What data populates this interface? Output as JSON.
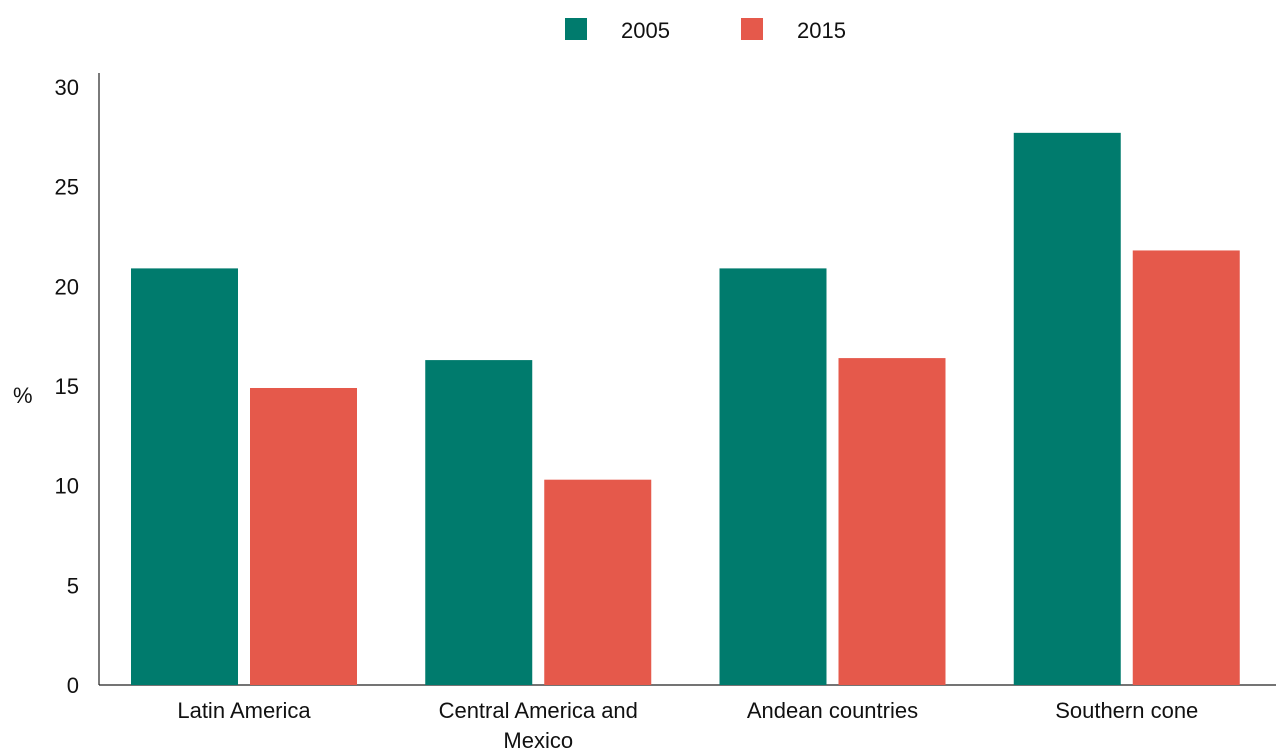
{
  "chart_data": {
    "type": "bar",
    "title": "",
    "xlabel": "",
    "ylabel": "%",
    "ylim": [
      0,
      30
    ],
    "yticks": [
      0,
      5,
      10,
      15,
      20,
      25,
      30
    ],
    "grid": false,
    "legend_position": "top-center",
    "categories": [
      "Latin America",
      "Central America and Mexico",
      "Andean countries",
      "Southern cone"
    ],
    "series": [
      {
        "name": "2005",
        "color": "#007b6d",
        "values": [
          20.9,
          16.3,
          20.9,
          27.7
        ]
      },
      {
        "name": "2015",
        "color": "#e5594b",
        "values": [
          14.9,
          10.3,
          16.4,
          21.8
        ]
      }
    ]
  }
}
